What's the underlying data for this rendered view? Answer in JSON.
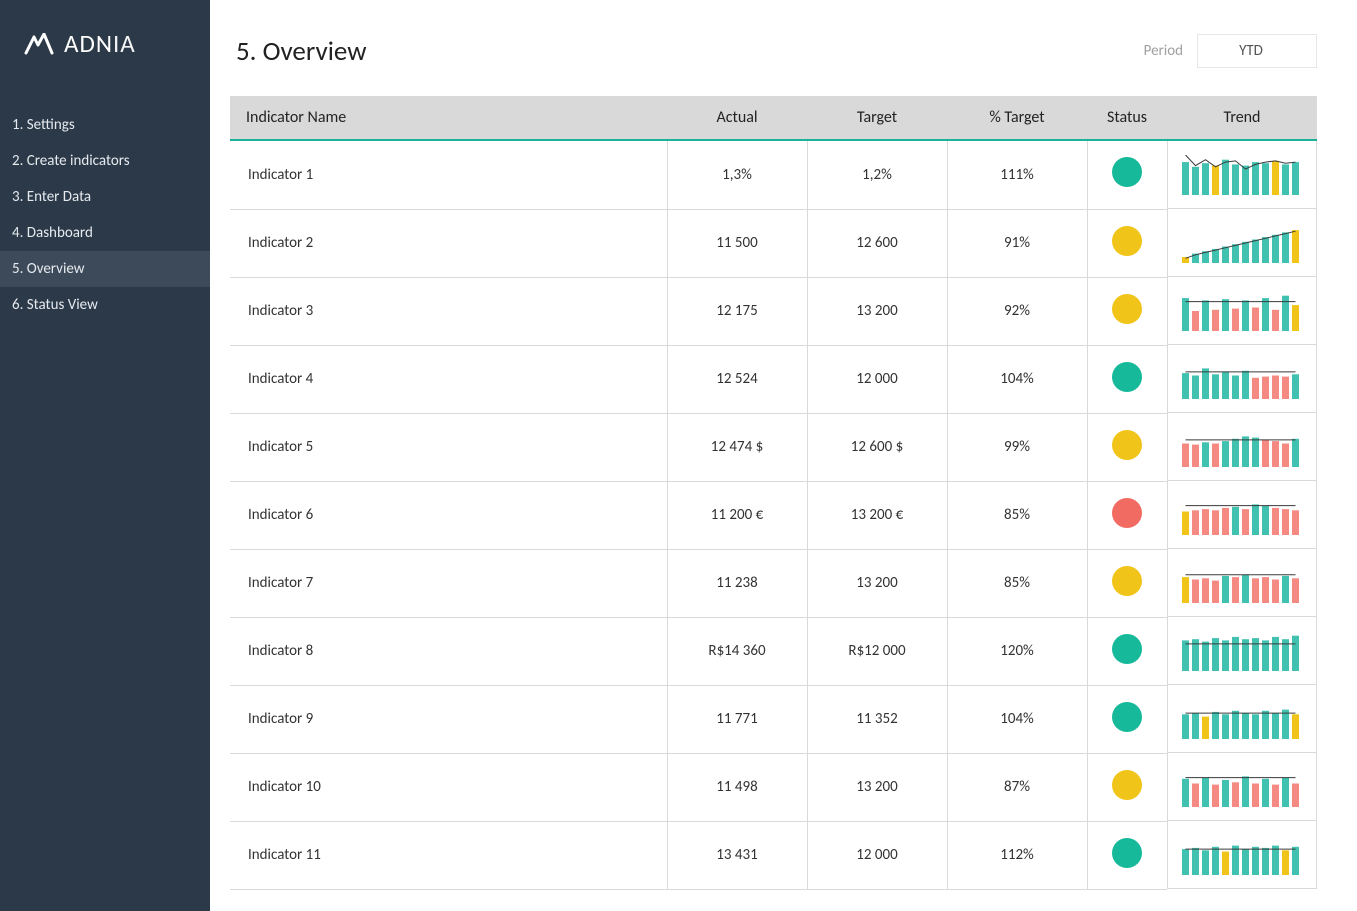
{
  "brand": {
    "name_strong": "ADN",
    "name_light": "IA"
  },
  "sidebar": {
    "items": [
      {
        "label": "1. Settings"
      },
      {
        "label": "2. Create indicators"
      },
      {
        "label": "3. Enter Data"
      },
      {
        "label": "4. Dashboard"
      },
      {
        "label": "5. Overview"
      },
      {
        "label": "6. Status View"
      }
    ],
    "active_index": 4
  },
  "header": {
    "title": "5. Overview",
    "period_label": "Period",
    "period_value": "YTD"
  },
  "colors": {
    "sidebar_bg": "#2b3948",
    "sidebar_active": "#3d4a5a",
    "accent": "#19b39a",
    "header_row_bg": "#d9d9d9",
    "border": "#d9d9d9",
    "status_green": "#16ba9a",
    "status_yellow": "#f0c419",
    "status_red": "#f26b63",
    "spark_teal": "#41c1b0",
    "spark_yellow": "#f0c419",
    "spark_red": "#f58a82",
    "spark_line": "#3a3a3a"
  },
  "table": {
    "columns": [
      "Indicator Name",
      "Actual",
      "Target",
      "% Target",
      "Status",
      "Trend"
    ],
    "rows": [
      {
        "name": "Indicator 1",
        "actual": "1,3%",
        "target": "1,2%",
        "pct": "111%",
        "status": "green",
        "trend": {
          "type": "bar_line",
          "bars": [
            28,
            24,
            27,
            25,
            30,
            26,
            25,
            28,
            27,
            29,
            26,
            28
          ],
          "colors": [
            "t",
            "t",
            "t",
            "y",
            "t",
            "t",
            "t",
            "t",
            "t",
            "y",
            "t",
            "t"
          ],
          "line": [
            34,
            25,
            30,
            24,
            28,
            29,
            22,
            26,
            28,
            29,
            27,
            28
          ]
        }
      },
      {
        "name": "Indicator 2",
        "actual": "11 500",
        "target": "12 600",
        "pct": "91%",
        "status": "yellow",
        "trend": {
          "type": "bar_line",
          "bars": [
            5,
            8,
            10,
            12,
            14,
            16,
            18,
            20,
            22,
            24,
            26,
            28
          ],
          "colors": [
            "y",
            "t",
            "t",
            "t",
            "t",
            "t",
            "t",
            "t",
            "t",
            "t",
            "t",
            "y"
          ],
          "line": [
            4,
            7,
            9,
            11,
            13,
            15,
            17,
            19,
            21,
            23,
            25,
            27
          ]
        }
      },
      {
        "name": "Indicator 3",
        "actual": "12 175",
        "target": "13 200",
        "pct": "92%",
        "status": "yellow",
        "trend": {
          "type": "bar_line",
          "bars": [
            28,
            17,
            26,
            18,
            27,
            19,
            26,
            20,
            28,
            18,
            30,
            22
          ],
          "colors": [
            "t",
            "r",
            "t",
            "r",
            "t",
            "r",
            "t",
            "r",
            "t",
            "r",
            "t",
            "y"
          ],
          "line": [
            25,
            25,
            25,
            25,
            25,
            25,
            25,
            25,
            25,
            25,
            25,
            25
          ]
        }
      },
      {
        "name": "Indicator 4",
        "actual": "12 524",
        "target": "12 000",
        "pct": "104%",
        "status": "green",
        "trend": {
          "type": "bar_line",
          "bars": [
            22,
            20,
            26,
            21,
            23,
            20,
            24,
            18,
            19,
            20,
            19,
            21
          ],
          "colors": [
            "t",
            "t",
            "t",
            "t",
            "t",
            "t",
            "t",
            "r",
            "r",
            "r",
            "r",
            "t"
          ],
          "line": [
            23,
            23,
            23,
            23,
            23,
            23,
            23,
            23,
            23,
            23,
            23,
            23
          ]
        }
      },
      {
        "name": "Indicator 5",
        "actual": "12 474 $",
        "target": "12 600 $",
        "pct": "99%",
        "status": "yellow",
        "trend": {
          "type": "bar_line",
          "bars": [
            20,
            19,
            21,
            20,
            22,
            24,
            26,
            25,
            23,
            22,
            20,
            24
          ],
          "colors": [
            "r",
            "r",
            "t",
            "r",
            "t",
            "t",
            "t",
            "t",
            "r",
            "r",
            "r",
            "t"
          ],
          "line": [
            23,
            23,
            23,
            23,
            23,
            23,
            23,
            23,
            23,
            23,
            23,
            23
          ]
        }
      },
      {
        "name": "Indicator 6",
        "actual": "11 200 €",
        "target": "13 200 €",
        "pct": "85%",
        "status": "red",
        "trend": {
          "type": "bar_line",
          "bars": [
            20,
            21,
            22,
            21,
            23,
            24,
            22,
            26,
            25,
            23,
            22,
            21
          ],
          "colors": [
            "y",
            "r",
            "r",
            "r",
            "r",
            "t",
            "r",
            "t",
            "t",
            "r",
            "r",
            "r"
          ],
          "line": [
            25,
            25,
            25,
            25,
            25,
            25,
            25,
            25,
            25,
            25,
            25,
            25
          ]
        }
      },
      {
        "name": "Indicator 7",
        "actual": "11 238",
        "target": "13 200",
        "pct": "85%",
        "status": "yellow",
        "trend": {
          "type": "bar_line",
          "bars": [
            22,
            20,
            21,
            19,
            23,
            22,
            24,
            21,
            22,
            20,
            23,
            21
          ],
          "colors": [
            "y",
            "r",
            "r",
            "r",
            "t",
            "r",
            "t",
            "r",
            "r",
            "r",
            "t",
            "r"
          ],
          "line": [
            24,
            24,
            24,
            24,
            24,
            24,
            24,
            24,
            24,
            24,
            24,
            24
          ]
        }
      },
      {
        "name": "Indicator 8",
        "actual": "R$14 360",
        "target": "R$12 000",
        "pct": "120%",
        "status": "green",
        "trend": {
          "type": "bar_line",
          "bars": [
            26,
            27,
            25,
            28,
            26,
            29,
            27,
            28,
            26,
            29,
            27,
            30
          ],
          "colors": [
            "t",
            "t",
            "t",
            "t",
            "t",
            "t",
            "t",
            "t",
            "t",
            "t",
            "t",
            "t"
          ],
          "line": [
            23,
            23,
            23,
            23,
            23,
            23,
            23,
            23,
            23,
            23,
            23,
            23
          ]
        }
      },
      {
        "name": "Indicator 9",
        "actual": "11 771",
        "target": "11 352",
        "pct": "104%",
        "status": "green",
        "trend": {
          "type": "bar_line",
          "bars": [
            21,
            22,
            19,
            23,
            21,
            24,
            22,
            21,
            24,
            22,
            25,
            21
          ],
          "colors": [
            "t",
            "t",
            "y",
            "t",
            "t",
            "t",
            "t",
            "t",
            "t",
            "t",
            "t",
            "y"
          ],
          "line": [
            22,
            22,
            22,
            22,
            22,
            22,
            22,
            22,
            22,
            22,
            22,
            22
          ]
        }
      },
      {
        "name": "Indicator 10",
        "actual": "11 498",
        "target": "13 200",
        "pct": "87%",
        "status": "yellow",
        "trend": {
          "type": "bar_line",
          "bars": [
            24,
            20,
            25,
            19,
            23,
            21,
            26,
            20,
            24,
            19,
            25,
            20
          ],
          "colors": [
            "t",
            "r",
            "t",
            "r",
            "t",
            "r",
            "t",
            "r",
            "t",
            "r",
            "t",
            "r"
          ],
          "line": [
            25,
            25,
            25,
            25,
            25,
            25,
            25,
            25,
            25,
            25,
            25,
            25
          ]
        }
      },
      {
        "name": "Indicator 11",
        "actual": "13 431",
        "target": "12 000",
        "pct": "112%",
        "status": "green",
        "trend": {
          "type": "bar_line",
          "bars": [
            22,
            23,
            21,
            24,
            20,
            25,
            22,
            24,
            23,
            25,
            21,
            24
          ],
          "colors": [
            "t",
            "t",
            "t",
            "t",
            "y",
            "t",
            "t",
            "t",
            "t",
            "t",
            "y",
            "t"
          ],
          "line": [
            22,
            22,
            22,
            22,
            22,
            22,
            22,
            22,
            22,
            22,
            22,
            22
          ]
        }
      }
    ]
  }
}
